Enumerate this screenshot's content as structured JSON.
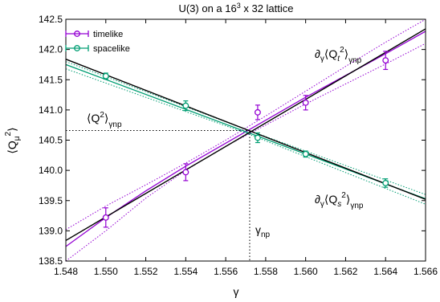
{
  "chart_data": {
    "type": "scatter",
    "title_main": "U(3) on a 16",
    "title_sup": "3",
    "title_rest": " x 32 lattice",
    "xlabel": "γ",
    "ylabel_main": "⟨Q",
    "ylabel_sub": "μ",
    "ylabel_sup": "2",
    "ylabel_close": "⟩",
    "xlim": [
      1.548,
      1.566
    ],
    "ylim": [
      138.5,
      142.5
    ],
    "xticks": [
      1.548,
      1.55,
      1.552,
      1.554,
      1.556,
      1.558,
      1.56,
      1.562,
      1.564,
      1.566
    ],
    "xtick_labels": [
      "1.548",
      "1.550",
      "1.552",
      "1.554",
      "1.556",
      "1.558",
      "1.560",
      "1.562",
      "1.564",
      "1.566"
    ],
    "yticks": [
      138.5,
      139.0,
      139.5,
      140.0,
      140.5,
      141.0,
      141.5,
      142.0,
      142.5
    ],
    "ytick_labels": [
      "138.5",
      "139.0",
      "139.5",
      "140.0",
      "140.5",
      "141.0",
      "141.5",
      "142.0",
      "142.5"
    ],
    "legend_position": "top-left",
    "series": [
      {
        "name": "timelike",
        "color": "#9400d3",
        "points": [
          {
            "x": 1.55,
            "y": 139.22,
            "err": 0.16
          },
          {
            "x": 1.554,
            "y": 139.97,
            "err": 0.14
          },
          {
            "x": 1.5576,
            "y": 140.96,
            "err": 0.12
          },
          {
            "x": 1.56,
            "y": 141.12,
            "err": 0.12
          },
          {
            "x": 1.564,
            "y": 141.82,
            "err": 0.15
          }
        ],
        "fit": [
          [
            1.548,
            138.74
          ],
          [
            1.55,
            139.22
          ],
          [
            1.552,
            139.66
          ],
          [
            1.554,
            140.07
          ],
          [
            1.556,
            140.45
          ],
          [
            1.558,
            140.83
          ],
          [
            1.56,
            141.21
          ],
          [
            1.562,
            141.57
          ],
          [
            1.564,
            141.93
          ],
          [
            1.566,
            142.3
          ]
        ],
        "band_upper": [
          [
            1.548,
            139.02
          ],
          [
            1.55,
            139.41
          ],
          [
            1.552,
            139.76
          ],
          [
            1.554,
            140.12
          ],
          [
            1.556,
            140.5
          ],
          [
            1.558,
            140.9
          ],
          [
            1.56,
            141.31
          ],
          [
            1.562,
            141.72
          ],
          [
            1.564,
            142.12
          ],
          [
            1.566,
            142.5
          ]
        ],
        "band_lower": [
          [
            1.548,
            138.5
          ],
          [
            1.55,
            139.0
          ],
          [
            1.552,
            139.54
          ],
          [
            1.554,
            140.0
          ],
          [
            1.556,
            140.4
          ],
          [
            1.558,
            140.75
          ],
          [
            1.56,
            141.1
          ],
          [
            1.562,
            141.43
          ],
          [
            1.564,
            141.76
          ],
          [
            1.566,
            142.1
          ]
        ]
      },
      {
        "name": "spacelike",
        "color": "#009e73",
        "points": [
          {
            "x": 1.55,
            "y": 141.56,
            "err": 0.05
          },
          {
            "x": 1.554,
            "y": 141.07,
            "err": 0.08
          },
          {
            "x": 1.5576,
            "y": 140.54,
            "err": 0.08
          },
          {
            "x": 1.56,
            "y": 140.27,
            "err": 0.05
          },
          {
            "x": 1.564,
            "y": 139.79,
            "err": 0.07
          }
        ],
        "fit": [
          [
            1.548,
            141.75
          ],
          [
            1.566,
            139.53
          ]
        ],
        "band_upper": [
          [
            1.548,
            141.8
          ],
          [
            1.557,
            140.68
          ],
          [
            1.566,
            139.6
          ]
        ],
        "band_lower": [
          [
            1.548,
            141.68
          ],
          [
            1.557,
            140.62
          ],
          [
            1.566,
            139.44
          ]
        ]
      }
    ],
    "black_lines": [
      [
        [
          1.548,
          138.84
        ],
        [
          1.566,
          142.34
        ]
      ],
      [
        [
          1.548,
          141.84
        ],
        [
          1.566,
          139.52
        ]
      ]
    ],
    "crossing": {
      "x": 1.5572,
      "y": 140.66
    },
    "annotations": {
      "q2": {
        "pre": "⟨Q",
        "sup": "2",
        "post": "⟩",
        "sub": "γnp"
      },
      "qt": {
        "pre": "∂",
        "g": "γ",
        "mid": "⟨Q",
        "t": "t",
        "sup": "2",
        "post": "⟩",
        "sub": "γnp"
      },
      "qs": {
        "pre": "∂",
        "g": "γ",
        "mid": "⟨Q",
        "s": "s",
        "sup": "2",
        "post": "⟩",
        "sub": "γnp"
      },
      "gnp": {
        "main": "γ",
        "sub": "np"
      }
    }
  }
}
